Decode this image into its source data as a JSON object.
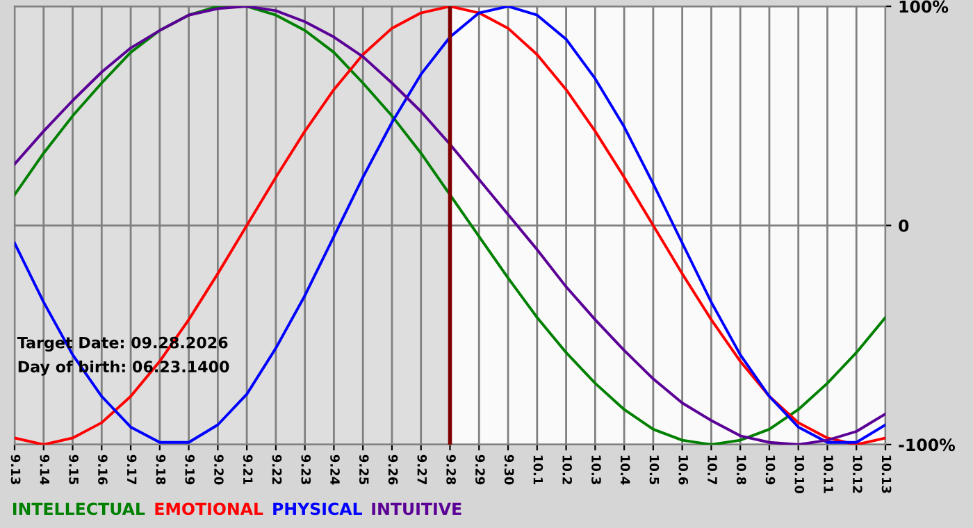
{
  "chart_data": {
    "type": "line",
    "categories": [
      "9.13",
      "9.14",
      "9.15",
      "9.16",
      "9.17",
      "9.18",
      "9.19",
      "9.20",
      "9.21",
      "9.22",
      "9.23",
      "9.24",
      "9.25",
      "9.26",
      "9.27",
      "9.28",
      "9.29",
      "9.30",
      "10.1",
      "10.2",
      "10.3",
      "10.4",
      "10.5",
      "10.6",
      "10.7",
      "10.8",
      "10.9",
      "10.10",
      "10.11",
      "10.12",
      "10.13"
    ],
    "series": [
      {
        "name": "INTELLECTUAL",
        "color": "#008000",
        "values": [
          14,
          33,
          50,
          65,
          79,
          89,
          96,
          100,
          100,
          96,
          89,
          79,
          65,
          50,
          33,
          14,
          -5,
          -24,
          -42,
          -58,
          -72,
          -84,
          -93,
          -98,
          -100,
          -98,
          -93,
          -84,
          -72,
          -58,
          -42
        ]
      },
      {
        "name": "EMOTIONAL",
        "color": "#ff0000",
        "values": [
          -97,
          -100,
          -97,
          -90,
          -78,
          -62,
          -43,
          -22,
          0,
          22,
          43,
          62,
          78,
          90,
          97,
          100,
          97,
          90,
          78,
          62,
          43,
          22,
          0,
          -22,
          -43,
          -62,
          -78,
          -90,
          -97,
          -100,
          -97
        ]
      },
      {
        "name": "PHYSICAL",
        "color": "#0000ff",
        "values": [
          -8,
          -35,
          -59,
          -78,
          -92,
          -99,
          -99,
          -91,
          -77,
          -56,
          -32,
          -5,
          22,
          47,
          69,
          86,
          97,
          100,
          96,
          85,
          67,
          45,
          19,
          -8,
          -35,
          -59,
          -78,
          -92,
          -99,
          -99,
          -91
        ]
      },
      {
        "name": "INTUITIVE",
        "color": "#5a0096",
        "values": [
          28,
          43,
          57,
          70,
          81,
          89,
          96,
          99,
          100,
          98,
          93,
          86,
          77,
          65,
          52,
          37,
          21,
          5,
          -11,
          -28,
          -43,
          -57,
          -70,
          -81,
          -89,
          -96,
          -99,
          -100,
          -98,
          -94,
          -86
        ]
      }
    ],
    "ylim": [
      -100,
      100
    ],
    "yticks": [
      {
        "value": 100,
        "label": "100%"
      },
      0,
      {
        "value": -100,
        "label": "-100%"
      }
    ],
    "grid": true,
    "legend": "bottom left",
    "marker": "none",
    "line_style": "solid",
    "ref_lines": [
      {
        "axis": "x",
        "value": "9.28",
        "label": null,
        "color": "#800000"
      }
    ],
    "bands": [
      {
        "axis": "x",
        "from": "9.13",
        "to": "9.28",
        "label": null,
        "color": "#dedede"
      }
    ],
    "annotations": [
      "Target Date: 09.28.2026",
      "Day of birth: 06.23.1400"
    ]
  }
}
